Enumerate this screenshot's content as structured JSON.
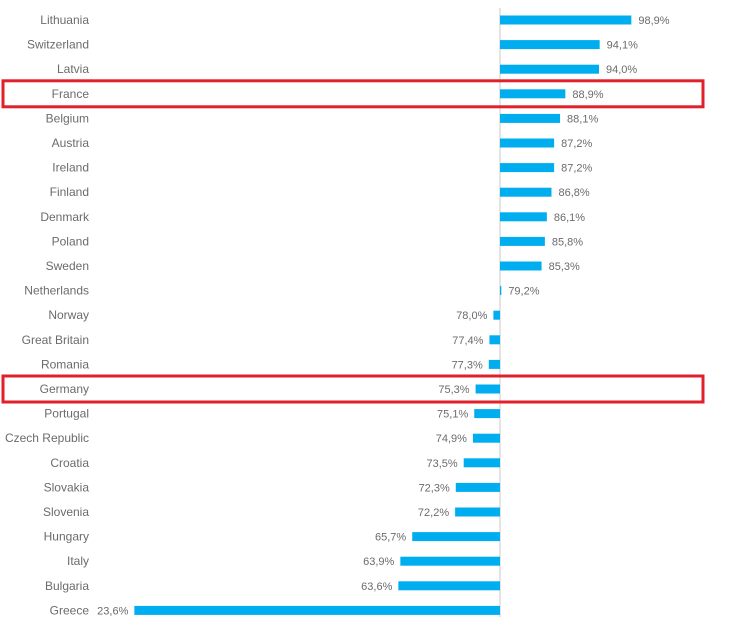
{
  "chart_data": {
    "type": "bar",
    "orientation": "horizontal",
    "baseline": 79.0,
    "bar_color": "#00adee",
    "highlight_color": "#e0202b",
    "highlighted": [
      "France",
      "Germany"
    ],
    "categories": [
      "Lithuania",
      "Switzerland",
      "Latvia",
      "France",
      "Belgium",
      "Austria",
      "Ireland",
      "Finland",
      "Denmark",
      "Poland",
      "Sweden",
      "Netherlands",
      "Norway",
      "Great Britain",
      "Romania",
      "Germany",
      "Portugal",
      "Czech Republic",
      "Croatia",
      "Slovakia",
      "Slovenia",
      "Hungary",
      "Italy",
      "Bulgaria",
      "Greece"
    ],
    "values": [
      98.9,
      94.1,
      94.0,
      88.9,
      88.1,
      87.2,
      87.2,
      86.8,
      86.1,
      85.8,
      85.3,
      79.2,
      78.0,
      77.4,
      77.3,
      75.3,
      75.1,
      74.9,
      73.5,
      72.3,
      72.2,
      65.7,
      63.9,
      63.6,
      23.6
    ],
    "labels": [
      "98,9%",
      "94,1%",
      "94,0%",
      "88,9%",
      "88,1%",
      "87,2%",
      "87,2%",
      "86,8%",
      "86,1%",
      "85,8%",
      "85,3%",
      "79,2%",
      "78,0%",
      "77,4%",
      "77,3%",
      "75,3%",
      "75,1%",
      "74,9%",
      "73,5%",
      "72,3%",
      "72,2%",
      "65,7%",
      "63,9%",
      "63,6%",
      "23,6%"
    ],
    "title": "",
    "xlabel": "",
    "ylabel": ""
  }
}
